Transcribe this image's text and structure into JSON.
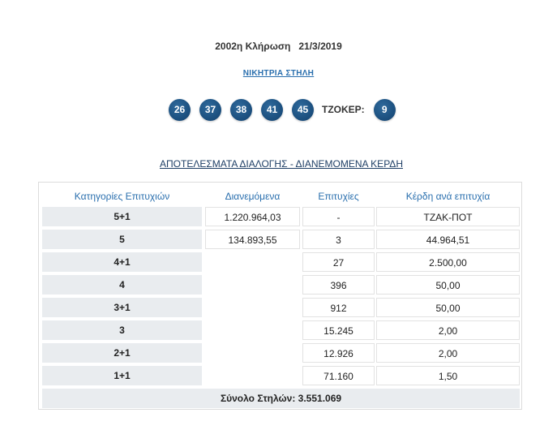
{
  "draw": {
    "title": "2002η Κλήρωση",
    "date": "21/3/2019"
  },
  "winning_link": "ΝΙΚΗΤΡΙΑ ΣΤΗΛΗ",
  "numbers": [
    "26",
    "37",
    "38",
    "41",
    "45"
  ],
  "joker": {
    "label": "ΤΖΟΚΕΡ:",
    "number": "9"
  },
  "results_heading": "ΑΠΟΤΕΛΕΣΜΑΤΑ ΔΙΑΛΟΓΗΣ - ΔΙΑΝΕΜΟΜΕΝΑ ΚΕΡΔΗ",
  "table": {
    "headers": [
      "Κατηγορίες Επιτυχιών",
      "Διανεμόμενα",
      "Επιτυχίες",
      "Κέρδη ανά επιτυχία"
    ],
    "rows": [
      {
        "category": "5+1",
        "distributed": "1.220.964,03",
        "winners": "-",
        "prize": "ΤΖΑΚ-ΠΟΤ"
      },
      {
        "category": "5",
        "distributed": "134.893,55",
        "winners": "3",
        "prize": "44.964,51"
      },
      {
        "category": "4+1",
        "distributed": "",
        "winners": "27",
        "prize": "2.500,00"
      },
      {
        "category": "4",
        "distributed": "",
        "winners": "396",
        "prize": "50,00"
      },
      {
        "category": "3+1",
        "distributed": "",
        "winners": "912",
        "prize": "50,00"
      },
      {
        "category": "3",
        "distributed": "",
        "winners": "15.245",
        "prize": "2,00"
      },
      {
        "category": "2+1",
        "distributed": "",
        "winners": "12.926",
        "prize": "2,00"
      },
      {
        "category": "1+1",
        "distributed": "",
        "winners": "71.160",
        "prize": "1,50"
      }
    ],
    "total": "Σύνολο Στηλών: 3.551.069"
  }
}
